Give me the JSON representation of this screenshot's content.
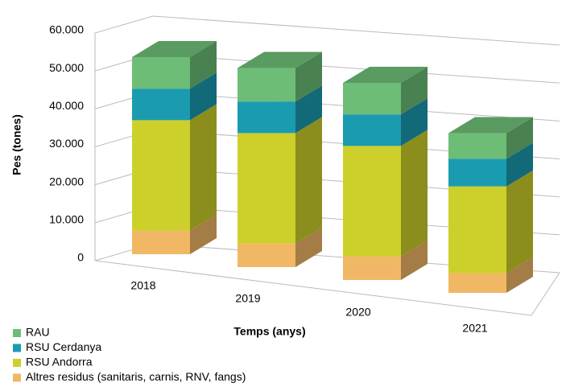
{
  "chart_data": {
    "type": "bar3d_stacked",
    "x_label": "Temps (anys)",
    "y_label": "Pes (tones)",
    "categories": [
      "2018",
      "2019",
      "2020",
      "2021"
    ],
    "series": [
      {
        "name": "Altres residus (sanitaris, carnis, RNV, fangs)",
        "color": "#f0b865",
        "values": [
          6000,
          6000,
          6000,
          5000
        ]
      },
      {
        "name": "RSU Andorra",
        "color": "#cdd02a",
        "values": [
          28000,
          28000,
          28000,
          22000
        ]
      },
      {
        "name": "RSU Cerdanya",
        "color": "#1a9bb0",
        "values": [
          8000,
          8000,
          8000,
          7000
        ]
      },
      {
        "name": "RAU",
        "color": "#6dbd76",
        "values": [
          8000,
          8500,
          8000,
          6500
        ]
      }
    ],
    "ylim": [
      0,
      60000
    ],
    "yticks": [
      0,
      {
        "value": 10000,
        "label": "10.000"
      },
      {
        "value": 20000,
        "label": "20.000"
      },
      {
        "value": 30000,
        "label": "30.000"
      },
      {
        "value": 40000,
        "label": "40.000"
      },
      {
        "value": 50000,
        "label": "50.000"
      },
      {
        "value": 60000,
        "label": "60.000"
      }
    ],
    "grid": true
  }
}
